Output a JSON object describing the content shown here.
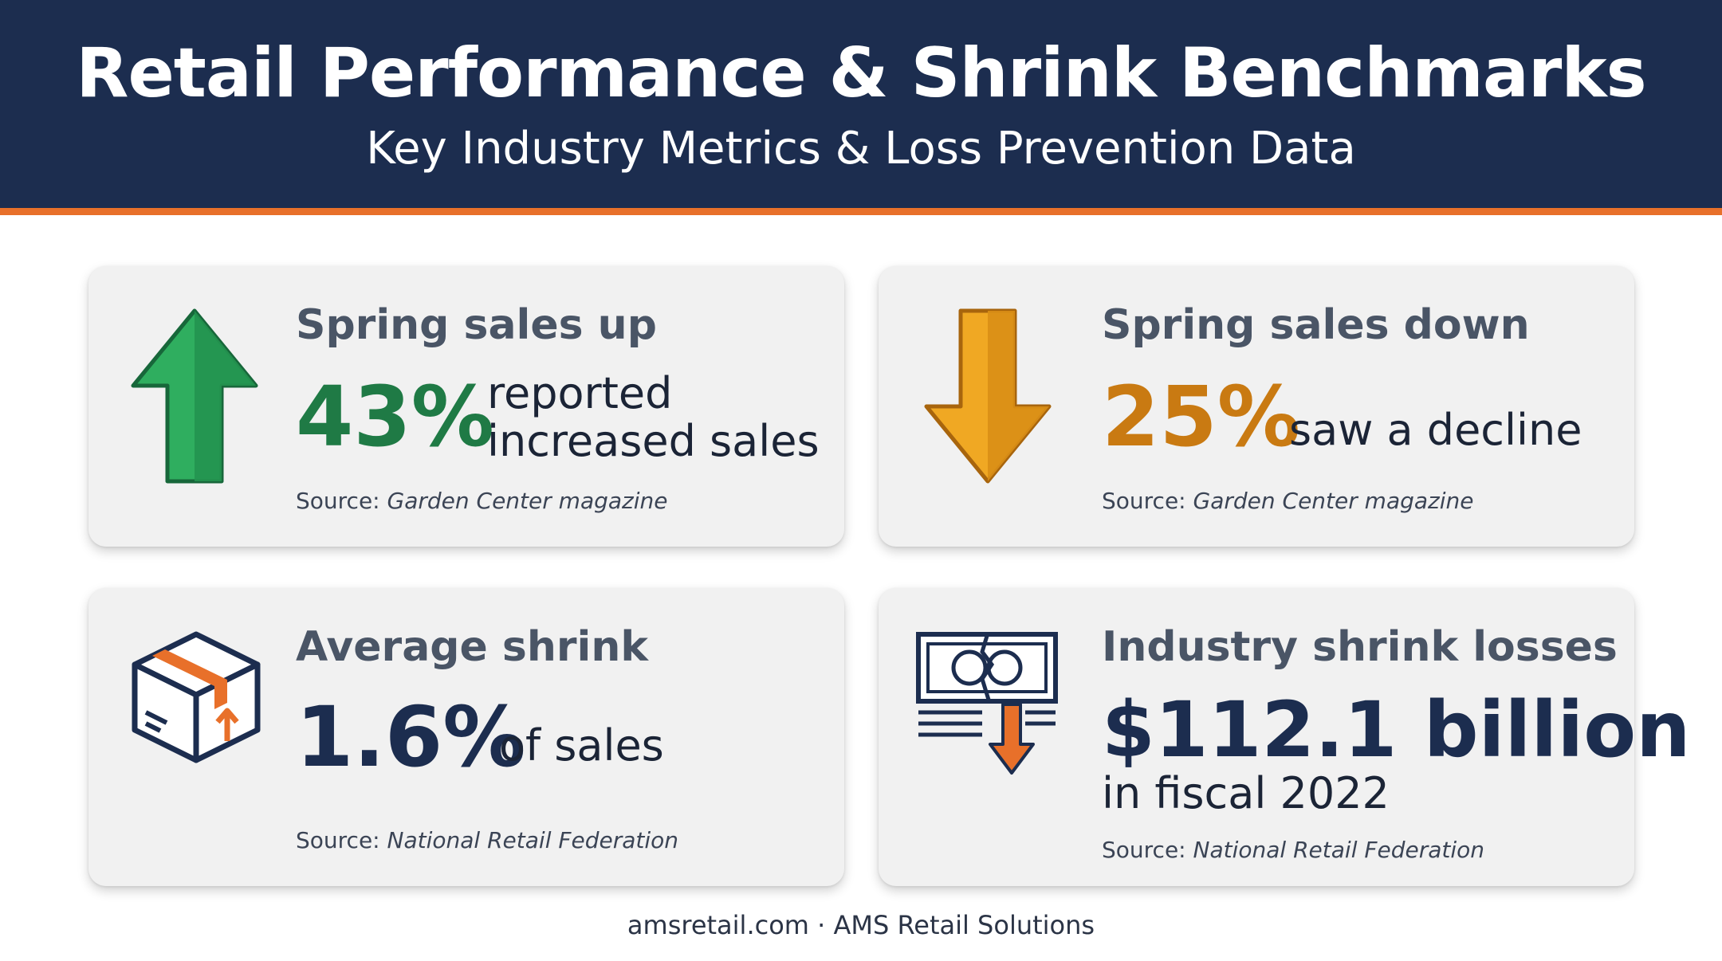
{
  "header": {
    "title": "Retail Performance & Shrink Benchmarks",
    "subtitle": "Key Industry Metrics & Loss Prevention Data"
  },
  "colors": {
    "navy": "#1c2d4f",
    "accent_orange": "#e8702a",
    "green": "#1f7a45",
    "gold": "#c97a12",
    "card_bg": "#f1f1f1"
  },
  "cards": [
    {
      "icon": "green-up-arrow-icon",
      "heading": "Spring sales up",
      "value": "43%",
      "description_line1": "reported",
      "description_line2": "increased sales",
      "source_prefix": "Source: ",
      "source_name": "Garden Center magazine"
    },
    {
      "icon": "gold-down-arrow-icon",
      "heading": "Spring sales down",
      "value": "25%",
      "description": "saw a decline",
      "source_prefix": "Source: ",
      "source_name": "Garden Center magazine"
    },
    {
      "icon": "box-icon",
      "heading": "Average shrink",
      "value": "1.6%",
      "description": "of sales",
      "source_prefix": "Source: ",
      "source_name": "National Retail Federation"
    },
    {
      "icon": "money-loss-icon",
      "heading": "Industry shrink losses",
      "value": "$112.1 billion",
      "description": "in fiscal 2022",
      "source_prefix": "Source: ",
      "source_name": "National Retail Federation"
    }
  ],
  "footer": {
    "text": "amsretail.com · AMS Retail Solutions"
  }
}
